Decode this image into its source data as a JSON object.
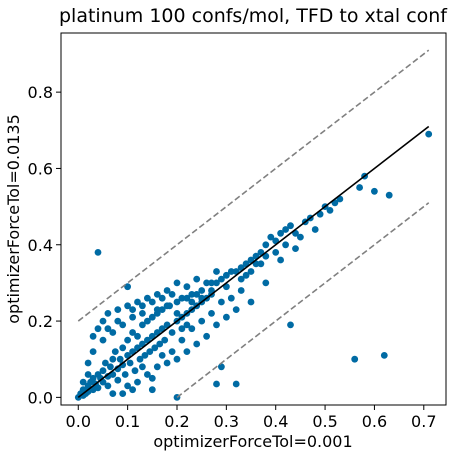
{
  "chart_data": {
    "type": "scatter",
    "title": "platinum 100 confs/mol, TFD to xtal conf",
    "xlabel": "optimizerForceTol=0.001",
    "ylabel": "optimizerForceTol=0.0135",
    "xlim": [
      -0.035,
      0.745
    ],
    "ylim": [
      -0.02,
      0.955
    ],
    "x_ticks": [
      0.0,
      0.1,
      0.2,
      0.3,
      0.4,
      0.5,
      0.6,
      0.7
    ],
    "x_tick_labels": [
      "0.0",
      "0.1",
      "0.2",
      "0.3",
      "0.4",
      "0.5",
      "0.6",
      "0.7"
    ],
    "y_ticks": [
      0.0,
      0.2,
      0.4,
      0.6,
      0.8
    ],
    "y_tick_labels": [
      "0.0",
      "0.2",
      "0.4",
      "0.6",
      "0.8"
    ],
    "grid": false,
    "legend": "none",
    "point_color": "#006BA4",
    "fit_line": {
      "x": [
        0.0,
        0.71
      ],
      "y": [
        0.0,
        0.71
      ],
      "color": "#000000",
      "style": "solid"
    },
    "upper_bound_line": {
      "x": [
        0.0,
        0.71
      ],
      "y": [
        0.2,
        0.91
      ],
      "color": "#808080",
      "style": "dashed"
    },
    "lower_bound_line": {
      "x": [
        0.2,
        0.71
      ],
      "y": [
        0.0,
        0.51
      ],
      "color": "#808080",
      "style": "dashed"
    },
    "series": [
      {
        "points": [
          [
            0.0,
            0.0
          ],
          [
            0.005,
            0.01
          ],
          [
            0.01,
            0.005
          ],
          [
            0.01,
            0.02
          ],
          [
            0.015,
            0.01
          ],
          [
            0.02,
            0.03
          ],
          [
            0.02,
            0.015
          ],
          [
            0.025,
            0.04
          ],
          [
            0.03,
            0.02
          ],
          [
            0.03,
            0.05
          ],
          [
            0.035,
            0.035
          ],
          [
            0.04,
            0.06
          ],
          [
            0.04,
            0.025
          ],
          [
            0.045,
            0.05
          ],
          [
            0.05,
            0.07
          ],
          [
            0.05,
            0.04
          ],
          [
            0.055,
            0.09
          ],
          [
            0.06,
            0.055
          ],
          [
            0.06,
            0.03
          ],
          [
            0.065,
            0.08
          ],
          [
            0.07,
            0.1
          ],
          [
            0.07,
            0.06
          ],
          [
            0.075,
            0.12
          ],
          [
            0.08,
            0.075
          ],
          [
            0.08,
            0.045
          ],
          [
            0.085,
            0.1
          ],
          [
            0.09,
            0.13
          ],
          [
            0.09,
            0.085
          ],
          [
            0.095,
            0.06
          ],
          [
            0.1,
            0.11
          ],
          [
            0.1,
            0.15
          ],
          [
            0.105,
            0.09
          ],
          [
            0.11,
            0.12
          ],
          [
            0.11,
            0.17
          ],
          [
            0.115,
            0.07
          ],
          [
            0.12,
            0.13
          ],
          [
            0.12,
            0.16
          ],
          [
            0.125,
            0.1
          ],
          [
            0.13,
            0.14
          ],
          [
            0.13,
            0.19
          ],
          [
            0.135,
            0.11
          ],
          [
            0.14,
            0.15
          ],
          [
            0.14,
            0.2
          ],
          [
            0.145,
            0.12
          ],
          [
            0.15,
            0.16
          ],
          [
            0.15,
            0.21
          ],
          [
            0.155,
            0.13
          ],
          [
            0.16,
            0.17
          ],
          [
            0.16,
            0.22
          ],
          [
            0.165,
            0.14
          ],
          [
            0.17,
            0.18
          ],
          [
            0.17,
            0.23
          ],
          [
            0.175,
            0.15
          ],
          [
            0.18,
            0.19
          ],
          [
            0.185,
            0.24
          ],
          [
            0.19,
            0.17
          ],
          [
            0.2,
            0.2
          ],
          [
            0.2,
            0.25
          ],
          [
            0.21,
            0.21
          ],
          [
            0.21,
            0.18
          ],
          [
            0.22,
            0.22
          ],
          [
            0.22,
            0.26
          ],
          [
            0.23,
            0.23
          ],
          [
            0.23,
            0.27
          ],
          [
            0.24,
            0.24
          ],
          [
            0.25,
            0.25
          ],
          [
            0.25,
            0.28
          ],
          [
            0.26,
            0.26
          ],
          [
            0.26,
            0.3
          ],
          [
            0.27,
            0.27
          ],
          [
            0.28,
            0.3
          ],
          [
            0.29,
            0.31
          ],
          [
            0.3,
            0.32
          ],
          [
            0.31,
            0.33
          ],
          [
            0.32,
            0.33
          ],
          [
            0.33,
            0.34
          ],
          [
            0.34,
            0.35
          ],
          [
            0.35,
            0.36
          ],
          [
            0.36,
            0.37
          ],
          [
            0.37,
            0.38
          ],
          [
            0.38,
            0.4
          ],
          [
            0.39,
            0.42
          ],
          [
            0.4,
            0.41
          ],
          [
            0.41,
            0.43
          ],
          [
            0.42,
            0.44
          ],
          [
            0.43,
            0.45
          ],
          [
            0.44,
            0.43
          ],
          [
            0.38,
            0.37
          ],
          [
            0.36,
            0.35
          ],
          [
            0.33,
            0.31
          ],
          [
            0.3,
            0.29
          ],
          [
            0.27,
            0.3
          ],
          [
            0.24,
            0.27
          ],
          [
            0.21,
            0.26
          ],
          [
            0.18,
            0.28
          ],
          [
            0.16,
            0.27
          ],
          [
            0.14,
            0.26
          ],
          [
            0.12,
            0.25
          ],
          [
            0.1,
            0.24
          ],
          [
            0.08,
            0.23
          ],
          [
            0.06,
            0.22
          ],
          [
            0.05,
            0.2
          ],
          [
            0.04,
            0.18
          ],
          [
            0.03,
            0.16
          ],
          [
            0.06,
            0.18
          ],
          [
            0.08,
            0.2
          ],
          [
            0.11,
            0.23
          ],
          [
            0.13,
            0.24
          ],
          [
            0.15,
            0.25
          ],
          [
            0.17,
            0.26
          ],
          [
            0.19,
            0.27
          ],
          [
            0.2,
            0.3
          ],
          [
            0.22,
            0.29
          ],
          [
            0.24,
            0.31
          ],
          [
            0.07,
            0.01
          ],
          [
            0.1,
            0.03
          ],
          [
            0.12,
            0.04
          ],
          [
            0.14,
            0.06
          ],
          [
            0.16,
            0.08
          ],
          [
            0.18,
            0.09
          ],
          [
            0.2,
            0.1
          ],
          [
            0.22,
            0.12
          ],
          [
            0.24,
            0.14
          ],
          [
            0.26,
            0.16
          ],
          [
            0.28,
            0.19
          ],
          [
            0.3,
            0.21
          ],
          [
            0.32,
            0.23
          ],
          [
            0.15,
            0.05
          ],
          [
            0.19,
            0.12
          ],
          [
            0.23,
            0.18
          ],
          [
            0.27,
            0.22
          ],
          [
            0.21,
            0.15
          ],
          [
            0.25,
            0.2
          ],
          [
            0.29,
            0.25
          ],
          [
            0.11,
            0.02
          ],
          [
            0.09,
            0.01
          ],
          [
            0.13,
            0.08
          ],
          [
            0.17,
            0.11
          ],
          [
            0.02,
            0.06
          ],
          [
            0.01,
            0.04
          ],
          [
            0.5,
            0.5
          ],
          [
            0.52,
            0.51
          ],
          [
            0.53,
            0.52
          ],
          [
            0.51,
            0.49
          ],
          [
            0.49,
            0.48
          ],
          [
            0.47,
            0.47
          ],
          [
            0.46,
            0.46
          ],
          [
            0.48,
            0.44
          ],
          [
            0.45,
            0.42
          ],
          [
            0.42,
            0.4
          ],
          [
            0.4,
            0.38
          ],
          [
            0.37,
            0.35
          ],
          [
            0.35,
            0.33
          ],
          [
            0.34,
            0.32
          ],
          [
            0.44,
            0.39
          ],
          [
            0.38,
            0.3
          ],
          [
            0.33,
            0.28
          ],
          [
            0.31,
            0.26
          ],
          [
            0.41,
            0.36
          ],
          [
            0.57,
            0.55
          ],
          [
            0.58,
            0.58
          ],
          [
            0.6,
            0.54
          ],
          [
            0.63,
            0.53
          ],
          [
            0.71,
            0.69
          ],
          [
            0.04,
            0.38
          ],
          [
            0.1,
            0.29
          ],
          [
            0.22,
            0.19
          ],
          [
            0.28,
            0.33
          ],
          [
            0.35,
            0.25
          ],
          [
            0.43,
            0.19
          ],
          [
            0.29,
            0.08
          ],
          [
            0.32,
            0.035
          ],
          [
            0.28,
            0.035
          ],
          [
            0.56,
            0.1
          ],
          [
            0.62,
            0.11
          ],
          [
            0.2,
            0.0
          ],
          [
            0.15,
            0.02
          ],
          [
            0.03,
            0.12
          ],
          [
            0.05,
            0.15
          ],
          [
            0.02,
            0.09
          ],
          [
            0.07,
            0.17
          ],
          [
            0.09,
            0.19
          ],
          [
            0.11,
            0.21
          ],
          [
            0.13,
            0.22
          ],
          [
            0.16,
            0.23
          ],
          [
            0.18,
            0.24
          ],
          [
            0.2,
            0.22
          ],
          [
            0.23,
            0.25
          ],
          [
            0.25,
            0.26
          ],
          [
            0.27,
            0.28
          ]
        ]
      }
    ]
  }
}
